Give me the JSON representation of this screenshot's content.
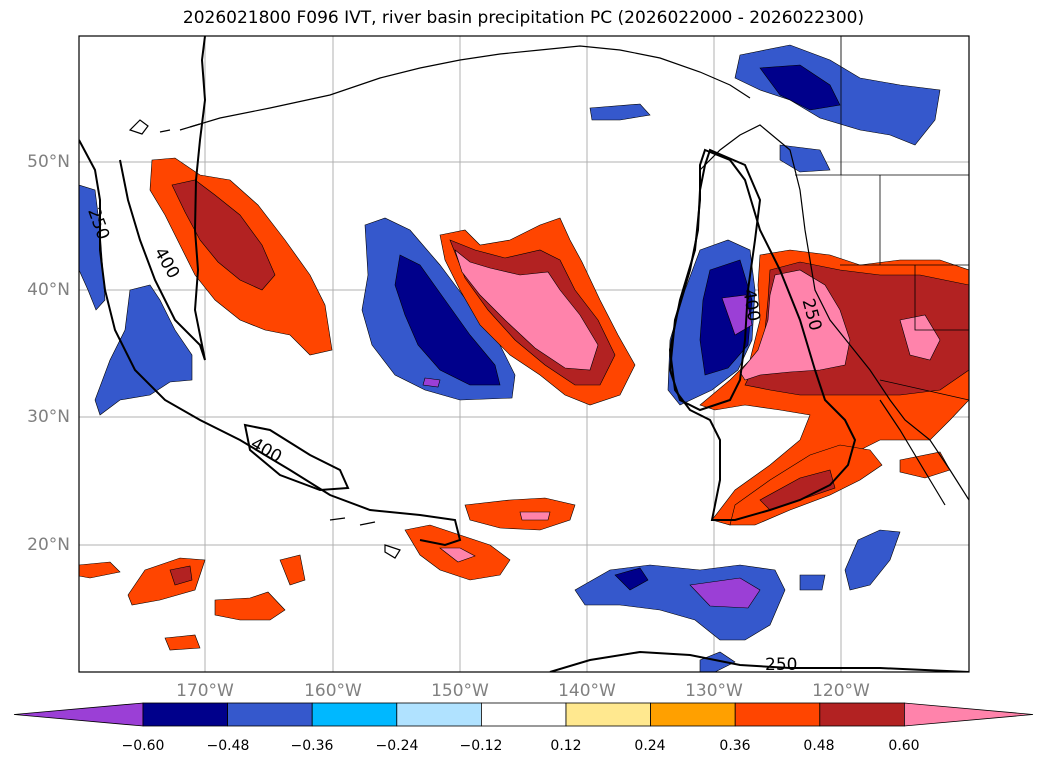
{
  "title": "2026021800 F096 IVT, river basin precipitation PC (2026022000 - 2026022300)",
  "lat_ticks": [
    "50°N",
    "40°N",
    "30°N",
    "20°N"
  ],
  "lon_ticks": [
    "170°W",
    "160°W",
    "150°W",
    "140°W",
    "130°W",
    "120°W"
  ],
  "contour_labels": [
    "250",
    "400",
    "400",
    "400",
    "250",
    "250"
  ],
  "colorbar": {
    "tick_labels": [
      "−0.60",
      "−0.48",
      "−0.36",
      "−0.24",
      "−0.12",
      "0.12",
      "0.24",
      "0.36",
      "0.48",
      "0.60"
    ],
    "colors": [
      "#9b3fd6",
      "#00008b",
      "#3558cc",
      "#00b8ff",
      "#b0e2ff",
      "#ffffff",
      "#ffe88f",
      "#ffa000",
      "#ff4500",
      "#b22222",
      "#ff83ab"
    ]
  },
  "palette": {
    "negative_strong": "#00008b",
    "negative_purple": "#9b3fd6",
    "negative_mid": "#3558cc",
    "positive_mid": "#ff4500",
    "positive_strong": "#b22222",
    "positive_pink": "#ff83ab",
    "land_outline": "#000000",
    "grid": "#b0b0b0"
  }
}
